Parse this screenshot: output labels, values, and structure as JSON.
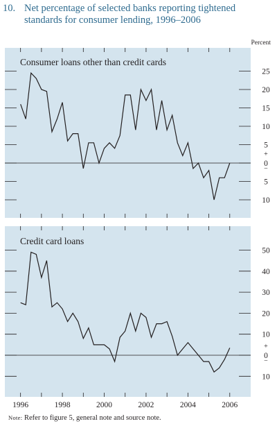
{
  "figure": {
    "number": "10.",
    "title": "Net percentage of selected banks reporting tightened standards for consumer lending, 1996–2006",
    "note_prefix": "Note:",
    "note_text": "Refer to figure 5, general note and source note."
  },
  "colors": {
    "panel_bg": "#d4e4ee",
    "line": "#231f20",
    "title": "#2e6b8f"
  },
  "chart_data": [
    {
      "type": "line",
      "title": "Consumer loans other than credit cards",
      "unit_label": "Percent",
      "ylim": [
        -15,
        30
      ],
      "y_tick_values": [
        25,
        20,
        15,
        10,
        5,
        0,
        -5,
        -10
      ],
      "y_tick_labels": [
        "25",
        "20",
        "15",
        "10",
        "5",
        "0",
        "5",
        "10"
      ],
      "zero_signs": [
        "+",
        "−"
      ],
      "x": [
        1996.0,
        1996.25,
        1996.5,
        1996.75,
        1997.0,
        1997.25,
        1997.5,
        1997.75,
        1998.0,
        1998.25,
        1998.5,
        1998.75,
        1999.0,
        1999.25,
        1999.5,
        1999.75,
        2000.0,
        2000.25,
        2000.5,
        2000.75,
        2001.0,
        2001.25,
        2001.5,
        2001.75,
        2002.0,
        2002.25,
        2002.5,
        2002.75,
        2003.0,
        2003.25,
        2003.5,
        2003.75,
        2004.0,
        2004.25,
        2004.5,
        2004.75,
        2005.0,
        2005.25,
        2005.5,
        2005.75,
        2006.0
      ],
      "values": [
        16,
        12,
        24.5,
        23,
        20,
        19.5,
        8.5,
        12,
        16.5,
        6,
        8,
        8,
        -1.5,
        5.5,
        5.5,
        0,
        4,
        5.5,
        4,
        7.5,
        18.5,
        18.5,
        9,
        20,
        17,
        20,
        9,
        17,
        9,
        13,
        5.5,
        2,
        5.5,
        -1.5,
        0,
        -4,
        -2,
        -10,
        -4,
        -4,
        0
      ]
    },
    {
      "type": "line",
      "title": "Credit card loans",
      "ylim": [
        -18,
        56
      ],
      "y_tick_values": [
        50,
        40,
        30,
        20,
        10,
        0,
        -10
      ],
      "y_tick_labels": [
        "50",
        "40",
        "30",
        "20",
        "10",
        "0",
        "10"
      ],
      "zero_signs": [
        "+",
        "−"
      ],
      "x": [
        1996.0,
        1996.25,
        1996.5,
        1996.75,
        1997.0,
        1997.25,
        1997.5,
        1997.75,
        1998.0,
        1998.25,
        1998.5,
        1998.75,
        1999.0,
        1999.25,
        1999.5,
        1999.75,
        2000.0,
        2000.25,
        2000.5,
        2000.75,
        2001.0,
        2001.25,
        2001.5,
        2001.75,
        2002.0,
        2002.25,
        2002.5,
        2002.75,
        2003.0,
        2003.25,
        2003.5,
        2003.75,
        2004.0,
        2004.25,
        2004.5,
        2004.75,
        2005.0,
        2005.25,
        2005.5,
        2005.75,
        2006.0
      ],
      "values": [
        25,
        24,
        49,
        48,
        37,
        45,
        23,
        25,
        22,
        16,
        20,
        16,
        8,
        13,
        5,
        5,
        5,
        3,
        -3,
        8.5,
        11.5,
        20,
        11.5,
        20,
        18,
        8.5,
        15,
        15,
        16,
        9,
        0,
        3,
        6,
        3,
        0,
        -3,
        -3,
        -8,
        -6,
        -2,
        3.5
      ]
    }
  ],
  "x_axis": {
    "range": [
      1995.25,
      2007.0
    ],
    "tick_years": [
      1996,
      1997,
      1998,
      1999,
      2000,
      2001,
      2002,
      2003,
      2004,
      2005,
      2006
    ],
    "label_years": [
      1996,
      1998,
      2000,
      2002,
      2004,
      2006
    ],
    "labels": [
      "1996",
      "1998",
      "2000",
      "2002",
      "2004",
      "2006"
    ]
  }
}
